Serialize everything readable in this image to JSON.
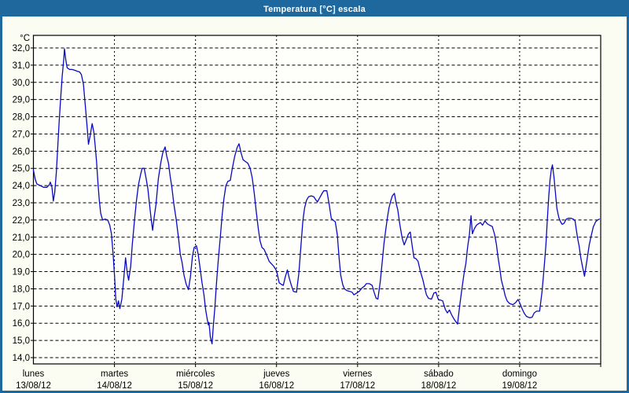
{
  "window": {
    "title": "Temperatura [°C] escala"
  },
  "colors": {
    "accent_blue": "#1e689e",
    "border_blue": "#1d689f",
    "line_blue": "#0a0ac0",
    "grid_black": "#000000",
    "plot_bg": "#fefefa",
    "app_bg": "#fbfcf2",
    "label_black": "#000000"
  },
  "axes": {
    "unit_label": "°C",
    "y_tick_labels": [
      "32,0",
      "31,0",
      "30,0",
      "29,0",
      "28,0",
      "27,0",
      "26,0",
      "25,0",
      "24,0",
      "23,0",
      "22,0",
      "21,0",
      "20,0",
      "19,0",
      "18,0",
      "17,0",
      "16,0",
      "15,0",
      "14,0"
    ],
    "y_tick_values": [
      32,
      31,
      30,
      29,
      28,
      27,
      26,
      25,
      24,
      23,
      22,
      21,
      20,
      19,
      18,
      17,
      16,
      15,
      14
    ],
    "x_day_labels": [
      {
        "name": "lunes",
        "date": "13/08/12"
      },
      {
        "name": "martes",
        "date": "14/08/12"
      },
      {
        "name": "miércoles",
        "date": "15/08/12"
      },
      {
        "name": "jueves",
        "date": "16/08/12"
      },
      {
        "name": "viernes",
        "date": "17/08/12"
      },
      {
        "name": "sábado",
        "date": "18/08/12"
      },
      {
        "name": "domingo",
        "date": "19/08/12"
      }
    ]
  },
  "chart_data": {
    "type": "line",
    "title": "Temperatura [°C] escala",
    "ylabel": "°C",
    "ylim": [
      14,
      32
    ],
    "x_range_hours": [
      0,
      168
    ],
    "x_unit": "hours since 13/08/12 00:00 (7 days shown, one vertical gridline per day)",
    "grid": true,
    "legend_position": "none",
    "series": [
      {
        "name": "Temperatura",
        "color": "#0a0ac0",
        "points": [
          [
            0,
            24.9
          ],
          [
            0.5,
            24.4
          ],
          [
            1,
            24.1
          ],
          [
            2,
            24.0
          ],
          [
            3,
            23.9
          ],
          [
            4,
            23.9
          ],
          [
            4.7,
            24.05
          ],
          [
            5,
            24.2
          ],
          [
            5.5,
            23.9
          ],
          [
            5.9,
            23.1
          ],
          [
            6.3,
            23.6
          ],
          [
            6.8,
            24.8
          ],
          [
            7.2,
            26.2
          ],
          [
            7.6,
            27.6
          ],
          [
            8,
            28.9
          ],
          [
            8.5,
            30.3
          ],
          [
            9,
            31.4
          ],
          [
            9.2,
            31.95
          ],
          [
            9.6,
            31.3
          ],
          [
            10,
            30.85
          ],
          [
            10.7,
            30.75
          ],
          [
            11.5,
            30.75
          ],
          [
            12.3,
            30.7
          ],
          [
            13,
            30.65
          ],
          [
            13.7,
            30.6
          ],
          [
            14.2,
            30.45
          ],
          [
            14.8,
            29.9
          ],
          [
            15.4,
            28.6
          ],
          [
            16,
            27.2
          ],
          [
            16.3,
            26.4
          ],
          [
            16.8,
            26.9
          ],
          [
            17.4,
            27.6
          ],
          [
            17.9,
            27.1
          ],
          [
            18.3,
            26.3
          ],
          [
            18.7,
            25.4
          ],
          [
            19.1,
            24.2
          ],
          [
            19.5,
            23.2
          ],
          [
            19.9,
            22.4
          ],
          [
            20.5,
            22.0
          ],
          [
            21.2,
            22.05
          ],
          [
            22,
            22.0
          ],
          [
            22.6,
            21.7
          ],
          [
            23.1,
            21.2
          ],
          [
            23.6,
            20.0
          ],
          [
            24,
            18.8
          ],
          [
            24.4,
            17.4
          ],
          [
            24.8,
            16.95
          ],
          [
            25.2,
            17.3
          ],
          [
            25.6,
            16.85
          ],
          [
            26.2,
            17.4
          ],
          [
            26.8,
            18.7
          ],
          [
            27.3,
            19.8
          ],
          [
            27.8,
            18.9
          ],
          [
            28.2,
            18.5
          ],
          [
            28.8,
            19.3
          ],
          [
            29.3,
            20.6
          ],
          [
            30,
            22.1
          ],
          [
            30.5,
            23.1
          ],
          [
            31.1,
            24.05
          ],
          [
            31.8,
            24.7
          ],
          [
            32.2,
            25.0
          ],
          [
            32.8,
            25.0
          ],
          [
            33.4,
            24.4
          ],
          [
            33.9,
            23.8
          ],
          [
            34.4,
            22.9
          ],
          [
            34.9,
            22.0
          ],
          [
            35.3,
            21.4
          ],
          [
            35.8,
            22.2
          ],
          [
            36.3,
            22.9
          ],
          [
            37,
            24.4
          ],
          [
            37.7,
            25.3
          ],
          [
            38.3,
            25.9
          ],
          [
            39,
            26.25
          ],
          [
            39.5,
            25.7
          ],
          [
            40,
            25.3
          ],
          [
            40.5,
            24.55
          ],
          [
            41,
            23.9
          ],
          [
            41.6,
            22.9
          ],
          [
            42.3,
            22.0
          ],
          [
            43,
            20.9
          ],
          [
            43.5,
            20.0
          ],
          [
            44,
            19.55
          ],
          [
            44.6,
            18.8
          ],
          [
            45.2,
            18.3
          ],
          [
            45.9,
            17.95
          ],
          [
            46.5,
            18.7
          ],
          [
            47.1,
            19.9
          ],
          [
            47.6,
            20.4
          ],
          [
            48.3,
            20.5
          ],
          [
            48.8,
            20.0
          ],
          [
            49.3,
            19.3
          ],
          [
            49.9,
            18.4
          ],
          [
            50.5,
            17.65
          ],
          [
            51,
            16.8
          ],
          [
            51.5,
            16.2
          ],
          [
            51.8,
            15.9
          ],
          [
            52,
            16.05
          ],
          [
            52.4,
            15.2
          ],
          [
            52.9,
            14.8
          ],
          [
            53.3,
            15.9
          ],
          [
            53.7,
            16.8
          ],
          [
            54.2,
            18.3
          ],
          [
            54.7,
            19.55
          ],
          [
            55.3,
            20.9
          ],
          [
            55.9,
            22.3
          ],
          [
            56.4,
            23.2
          ],
          [
            57,
            24.0
          ],
          [
            57.6,
            24.25
          ],
          [
            58.3,
            24.3
          ],
          [
            58.9,
            25.0
          ],
          [
            59.6,
            25.7
          ],
          [
            60.3,
            26.2
          ],
          [
            60.9,
            26.43
          ],
          [
            61.5,
            25.9
          ],
          [
            62.1,
            25.5
          ],
          [
            62.8,
            25.4
          ],
          [
            63.5,
            25.3
          ],
          [
            64.2,
            25.0
          ],
          [
            64.8,
            24.45
          ],
          [
            65.4,
            23.55
          ],
          [
            66,
            22.5
          ],
          [
            66.6,
            21.5
          ],
          [
            67.1,
            20.8
          ],
          [
            67.7,
            20.4
          ],
          [
            68.3,
            20.3
          ],
          [
            69,
            20.0
          ],
          [
            69.8,
            19.6
          ],
          [
            70.5,
            19.45
          ],
          [
            71.2,
            19.3
          ],
          [
            72,
            19.05
          ],
          [
            72.8,
            18.35
          ],
          [
            73.5,
            18.25
          ],
          [
            74,
            18.2
          ],
          [
            74.6,
            18.7
          ],
          [
            75.2,
            19.1
          ],
          [
            75.8,
            18.6
          ],
          [
            76.4,
            18.2
          ],
          [
            77,
            17.85
          ],
          [
            77.9,
            17.8
          ],
          [
            78.6,
            18.9
          ],
          [
            79.2,
            20.4
          ],
          [
            79.8,
            21.95
          ],
          [
            80.3,
            22.7
          ],
          [
            80.9,
            23.15
          ],
          [
            81.5,
            23.35
          ],
          [
            82.3,
            23.4
          ],
          [
            83,
            23.35
          ],
          [
            83.7,
            23.15
          ],
          [
            84.1,
            23.05
          ],
          [
            84.8,
            23.3
          ],
          [
            85.5,
            23.55
          ],
          [
            86,
            23.7
          ],
          [
            86.9,
            23.7
          ],
          [
            87.6,
            22.9
          ],
          [
            88.2,
            22.1
          ],
          [
            88.7,
            22.0
          ],
          [
            89.4,
            21.9
          ],
          [
            90,
            21.15
          ],
          [
            90.5,
            19.85
          ],
          [
            91,
            18.8
          ],
          [
            91.6,
            18.25
          ],
          [
            92.1,
            18.0
          ],
          [
            92.8,
            17.9
          ],
          [
            93.7,
            17.85
          ],
          [
            94.4,
            17.8
          ],
          [
            94.9,
            17.65
          ],
          [
            95.7,
            17.75
          ],
          [
            96.5,
            17.85
          ],
          [
            97.3,
            18.05
          ],
          [
            98,
            18.15
          ],
          [
            98.6,
            18.3
          ],
          [
            99.5,
            18.3
          ],
          [
            100.3,
            18.2
          ],
          [
            100.9,
            17.8
          ],
          [
            101.5,
            17.45
          ],
          [
            102,
            17.4
          ],
          [
            102.7,
            18.4
          ],
          [
            103.3,
            19.55
          ],
          [
            103.8,
            20.6
          ],
          [
            104.3,
            21.35
          ],
          [
            104.8,
            22.1
          ],
          [
            105.3,
            22.7
          ],
          [
            105.8,
            23.1
          ],
          [
            106.3,
            23.4
          ],
          [
            106.9,
            23.55
          ],
          [
            107.5,
            22.9
          ],
          [
            107.9,
            22.6
          ],
          [
            108.5,
            21.75
          ],
          [
            109.2,
            20.95
          ],
          [
            109.8,
            20.55
          ],
          [
            110.5,
            20.9
          ],
          [
            111.1,
            21.2
          ],
          [
            111.6,
            21.3
          ],
          [
            112.2,
            20.45
          ],
          [
            112.7,
            19.8
          ],
          [
            113.3,
            19.75
          ],
          [
            113.9,
            19.6
          ],
          [
            114.6,
            19.0
          ],
          [
            115.3,
            18.55
          ],
          [
            115.9,
            18.05
          ],
          [
            116.4,
            17.65
          ],
          [
            117,
            17.45
          ],
          [
            117.9,
            17.4
          ],
          [
            118.6,
            17.75
          ],
          [
            119.2,
            17.8
          ],
          [
            119.8,
            17.45
          ],
          [
            120,
            17.35
          ],
          [
            120.5,
            17.35
          ],
          [
            121.2,
            17.3
          ],
          [
            122,
            16.8
          ],
          [
            122.6,
            16.6
          ],
          [
            123.2,
            16.77
          ],
          [
            123.9,
            16.47
          ],
          [
            124.7,
            16.2
          ],
          [
            125.6,
            15.95
          ],
          [
            126.3,
            17.1
          ],
          [
            126.9,
            18.0
          ],
          [
            127.5,
            18.85
          ],
          [
            128.1,
            19.5
          ],
          [
            128.6,
            20.45
          ],
          [
            129.1,
            21.1
          ],
          [
            129.6,
            22.25
          ],
          [
            130,
            21.2
          ],
          [
            130.6,
            21.5
          ],
          [
            131.2,
            21.7
          ],
          [
            131.8,
            21.78
          ],
          [
            132.4,
            21.85
          ],
          [
            133,
            21.7
          ],
          [
            133.7,
            21.95
          ],
          [
            134.4,
            21.78
          ],
          [
            135.1,
            21.7
          ],
          [
            135.9,
            21.62
          ],
          [
            136.6,
            21.15
          ],
          [
            137.1,
            20.6
          ],
          [
            137.6,
            19.85
          ],
          [
            138.1,
            19.2
          ],
          [
            138.6,
            18.5
          ],
          [
            139.2,
            18.05
          ],
          [
            139.7,
            17.6
          ],
          [
            140.3,
            17.3
          ],
          [
            141,
            17.15
          ],
          [
            142,
            17.08
          ],
          [
            142.8,
            17.2
          ],
          [
            143.5,
            17.38
          ],
          [
            144,
            17.2
          ],
          [
            144.6,
            16.9
          ],
          [
            145.3,
            16.6
          ],
          [
            146,
            16.4
          ],
          [
            146.9,
            16.32
          ],
          [
            147.7,
            16.35
          ],
          [
            148.3,
            16.6
          ],
          [
            149,
            16.7
          ],
          [
            149.9,
            16.7
          ],
          [
            150.6,
            17.8
          ],
          [
            151,
            18.65
          ],
          [
            151.4,
            19.6
          ],
          [
            151.8,
            20.6
          ],
          [
            152.2,
            22.0
          ],
          [
            152.6,
            23.35
          ],
          [
            153,
            24.35
          ],
          [
            153.4,
            24.95
          ],
          [
            153.7,
            25.2
          ],
          [
            154.2,
            24.45
          ],
          [
            154.6,
            23.55
          ],
          [
            155,
            22.7
          ],
          [
            155.6,
            22.15
          ],
          [
            156.1,
            21.9
          ],
          [
            156.6,
            21.75
          ],
          [
            157.1,
            21.8
          ],
          [
            157.8,
            22.05
          ],
          [
            158.4,
            22.1
          ],
          [
            159.2,
            22.1
          ],
          [
            159.9,
            22.05
          ],
          [
            160.4,
            21.95
          ],
          [
            160.8,
            21.4
          ],
          [
            161.2,
            20.9
          ],
          [
            161.6,
            20.5
          ],
          [
            162.1,
            19.8
          ],
          [
            162.6,
            19.3
          ],
          [
            163.2,
            18.73
          ],
          [
            163.7,
            19.35
          ],
          [
            164.1,
            19.9
          ],
          [
            164.6,
            20.55
          ],
          [
            165.2,
            21.1
          ],
          [
            165.8,
            21.6
          ],
          [
            166.5,
            21.9
          ],
          [
            167.1,
            22.0
          ],
          [
            167.6,
            22.05
          ]
        ]
      }
    ]
  }
}
